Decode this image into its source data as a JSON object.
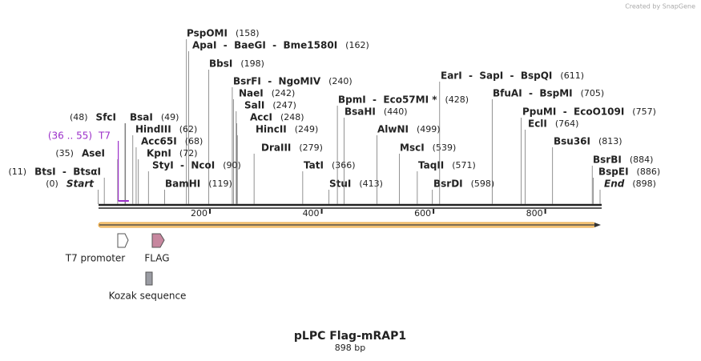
{
  "credit": "Created by SnapGene",
  "title": "pLPC Flag-mRAP1",
  "subtitle": "898 bp",
  "ruler": [
    {
      "value": 200,
      "label": "200"
    },
    {
      "value": 400,
      "label": "400"
    },
    {
      "value": 600,
      "label": "600"
    },
    {
      "value": 800,
      "label": "800"
    }
  ],
  "length": 898,
  "enzymes": [
    {
      "name": "PspOMI",
      "site": {
        "value": 158,
        "label": "(158)"
      }
    },
    {
      "name": "ApaI  -  BaeGI  -  Bme1580I",
      "site": {
        "value": 162,
        "label": "(162)"
      }
    },
    {
      "name": "BbsI",
      "site": {
        "value": 198,
        "label": "(198)"
      }
    },
    {
      "name": "BsrFI  -  NgoMIV",
      "site": {
        "value": 240,
        "label": "(240)"
      }
    },
    {
      "name": "NaeI",
      "site": {
        "value": 242,
        "label": "(242)"
      }
    },
    {
      "name": "SalI",
      "site": {
        "value": 247,
        "label": "(247)"
      }
    },
    {
      "name": "AccI",
      "site": {
        "value": 248,
        "label": "(248)"
      }
    },
    {
      "name": "HincII",
      "site": {
        "value": 249,
        "label": "(249)"
      }
    },
    {
      "name": "DraIII",
      "site": {
        "value": 279,
        "label": "(279)"
      }
    },
    {
      "name": "TatI",
      "site": {
        "value": 366,
        "label": "(366)"
      }
    },
    {
      "name": "StuI",
      "site": {
        "value": 413,
        "label": "(413)"
      }
    },
    {
      "name": "BpmI  -  Eco57MI *",
      "site": {
        "value": 428,
        "label": "(428)"
      }
    },
    {
      "name": "BsaHI",
      "site": {
        "value": 440,
        "label": "(440)"
      }
    },
    {
      "name": "AlwNI",
      "site": {
        "value": 499,
        "label": "(499)"
      }
    },
    {
      "name": "MscI",
      "site": {
        "value": 539,
        "label": "(539)"
      }
    },
    {
      "name": "TaqII",
      "site": {
        "value": 571,
        "label": "(571)"
      }
    },
    {
      "name": "BsrDI",
      "site": {
        "value": 598,
        "label": "(598)"
      }
    },
    {
      "name": "EarI  -  SapI  -  BspQI",
      "site": {
        "value": 611,
        "label": "(611)"
      }
    },
    {
      "name": "BfuAI  -  BspMI",
      "site": {
        "value": 705,
        "label": "(705)"
      }
    },
    {
      "name": "PpuMI  -  EcoO109I",
      "site": {
        "value": 757,
        "label": "(757)"
      }
    },
    {
      "name": "EclI",
      "site": {
        "value": 764,
        "label": "(764)"
      }
    },
    {
      "name": "Bsu36I",
      "site": {
        "value": 813,
        "label": "(813)"
      }
    },
    {
      "name": "BsrBI",
      "site": {
        "value": 884,
        "label": "(884)"
      }
    },
    {
      "name": "BspEI",
      "site": {
        "value": 886,
        "label": "(886)"
      }
    },
    {
      "name": "BsaI",
      "site": {
        "value": 49,
        "label": "(49)"
      }
    },
    {
      "name": "HindIII",
      "site": {
        "value": 62,
        "label": "(62)"
      }
    },
    {
      "name": "Acc65I",
      "site": {
        "value": 68,
        "label": "(68)"
      }
    },
    {
      "name": "KpnI",
      "site": {
        "value": 72,
        "label": "(72)"
      }
    },
    {
      "name": "StyI  -  NcoI",
      "site": {
        "value": 90,
        "label": "(90)"
      }
    },
    {
      "name": "BamHI",
      "site": {
        "value": 119,
        "label": "(119)"
      }
    },
    {
      "name": "SfcI",
      "site": {
        "value": 48,
        "label": "(48)"
      }
    },
    {
      "name": "AseI",
      "site": {
        "value": 35,
        "label": "(35)"
      }
    },
    {
      "name": "BtsI  -  BtsαI",
      "site": {
        "value": 11,
        "label": "(11)"
      }
    }
  ],
  "ends": [
    {
      "name": "Start",
      "site": {
        "value": 0,
        "label": "(0)"
      }
    },
    {
      "name": "End",
      "site": {
        "value": 898,
        "label": "(898)"
      }
    }
  ],
  "primer": {
    "name": "T7",
    "range": {
      "start": 36,
      "end": 55,
      "label": "(36 .. 55)"
    }
  },
  "features": [
    {
      "name": "T7 promoter"
    },
    {
      "name": "FLAG"
    },
    {
      "name": "Kozak sequence"
    }
  ]
}
